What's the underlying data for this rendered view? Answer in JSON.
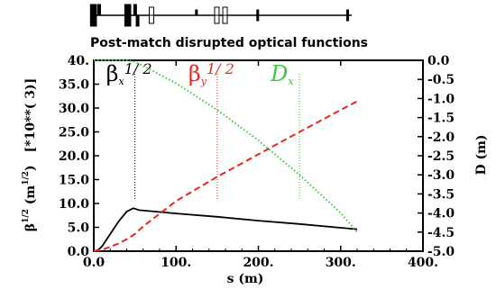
{
  "chart_data": {
    "type": "line",
    "title": "Post-match disrupted optical functions",
    "xlabel": "s (m)",
    "ylabel_left": {
      "base": "β",
      "sup1": "1/2",
      "mid": " (m",
      "sup2": "1/2",
      "end": ")",
      "scale": "[*10**( 3)]"
    },
    "ylabel_right": "D (m)",
    "xlim": [
      0,
      400
    ],
    "ylim_left": [
      0,
      40
    ],
    "ylim_right": [
      -5,
      0
    ],
    "x_ticks": [
      "0.0",
      "100.",
      "200.",
      "300.",
      "400."
    ],
    "y_left_ticks": [
      "0.0",
      "5.0",
      "10.0",
      "15.0",
      "20.0",
      "25.0",
      "30.0",
      "35.0",
      "40."
    ],
    "y_right_ticks": [
      "0.0",
      "-0.5",
      "-1.0",
      "-1.5",
      "-2.0",
      "-2.5",
      "-3.0",
      "-3.5",
      "-4.0",
      "-4.5",
      "-5.0"
    ],
    "legend": [
      {
        "base": "β",
        "sub": "x",
        "sup": "1/ 2",
        "color": "#000000",
        "marker_s": 50
      },
      {
        "base": "β",
        "sub": "y",
        "sup": "1/ 2",
        "color": "#e8281e",
        "marker_s": 150
      },
      {
        "base": "D",
        "sub": "x",
        "sup": "",
        "color": "#3cc83c",
        "marker_s": 250
      }
    ],
    "series": [
      {
        "name": "βx^1/2",
        "color": "#000000",
        "dash": "solid",
        "axis": "left",
        "x": [
          0,
          5,
          10,
          20,
          30,
          40,
          48,
          50,
          55,
          100,
          150,
          200,
          250,
          300,
          320
        ],
        "y": [
          0,
          0.2,
          1.0,
          3.6,
          6.2,
          8.3,
          9.0,
          8.9,
          8.6,
          7.9,
          7.2,
          6.4,
          5.7,
          4.9,
          4.6
        ]
      },
      {
        "name": "βy^1/2",
        "color": "#e8281e",
        "dash": "dashed",
        "axis": "left",
        "x": [
          0,
          10,
          20,
          30,
          40,
          50,
          60,
          100,
          150,
          200,
          250,
          300,
          320
        ],
        "y": [
          0,
          0.3,
          0.9,
          1.6,
          2.5,
          3.6,
          5.2,
          10.5,
          15.6,
          20.3,
          25.0,
          29.6,
          31.4
        ]
      },
      {
        "name": "Dx",
        "color": "#3cc83c",
        "dash": "dotted",
        "axis": "right",
        "x": [
          0,
          10,
          20,
          30,
          40,
          50,
          100,
          150,
          200,
          250,
          300,
          320
        ],
        "y": [
          0,
          0,
          0,
          0,
          0,
          -0.04,
          -0.6,
          -1.3,
          -2.1,
          -3.0,
          -4.0,
          -4.5
        ]
      }
    ]
  },
  "lattice": {
    "elements": [
      {
        "s": 2,
        "kind": "bend",
        "side": "both"
      },
      {
        "s": 6,
        "kind": "bend",
        "side": "both"
      },
      {
        "s": 11,
        "kind": "bend",
        "side": "up"
      },
      {
        "s": 44,
        "kind": "bend",
        "side": "both"
      },
      {
        "s": 48,
        "kind": "bend",
        "side": "both"
      },
      {
        "s": 55,
        "kind": "bend",
        "side": "up"
      },
      {
        "s": 58,
        "kind": "bend",
        "side": "down"
      },
      {
        "s": 75,
        "kind": "box",
        "side": "both"
      },
      {
        "s": 130,
        "kind": "quad",
        "side": "up"
      },
      {
        "s": 155,
        "kind": "box",
        "side": "both"
      },
      {
        "s": 165,
        "kind": "box",
        "side": "both"
      },
      {
        "s": 205,
        "kind": "quad",
        "side": "both"
      },
      {
        "s": 315,
        "kind": "quad",
        "side": "both"
      }
    ]
  }
}
